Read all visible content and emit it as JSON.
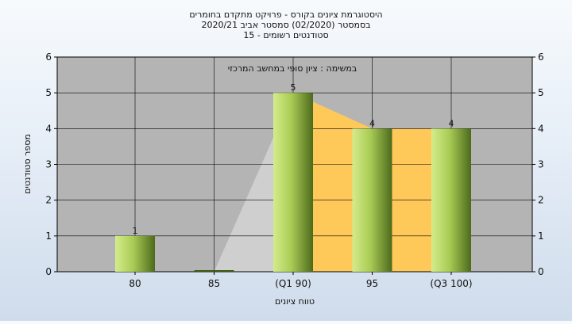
{
  "chart_data": {
    "type": "bar",
    "title_lines": [
      "היסטוגרמת ציונים בקורס - פרויקט מתקדם בחומרים",
      "בסמסטר  (02/2020)  סמסטר אביב 2020/21",
      "סטודנטים רשומים - 15"
    ],
    "annotation": "במשימה : ציון סופי במחשב המרכזי",
    "xlabel": "טווח ציונים",
    "ylabel": "מספר סטודנטים",
    "categories": [
      "80",
      "85",
      "(Q1 90)",
      "95",
      "(Q3 100)"
    ],
    "values": [
      1,
      0,
      5,
      4,
      4
    ],
    "data_labels": [
      "1",
      "",
      "5",
      "4",
      "4"
    ],
    "y_ticks": [
      "0",
      "1",
      "2",
      "3",
      "4",
      "5",
      "6"
    ],
    "ylim": [
      0,
      6
    ],
    "grid": true,
    "colors": {
      "plot_bg": "#b4b4b4",
      "bar_light": "#d4ec8c",
      "bar_dark": "#4d6a1c",
      "band_fill": "#ffc95a",
      "band_gray": "#cfcfcf",
      "grid": "#000000"
    }
  }
}
